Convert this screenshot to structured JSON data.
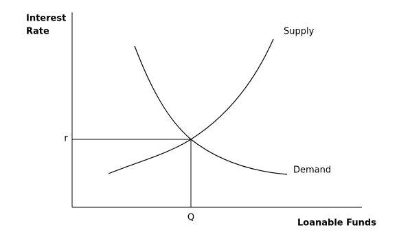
{
  "y_axis_label": [
    "Interest",
    "Rate"
  ],
  "x_axis_label": "Loanable Funds",
  "curves": {
    "supply": "Supply",
    "demand": "Demand"
  },
  "equilibrium": {
    "rate": "r",
    "quantity": "Q"
  }
}
